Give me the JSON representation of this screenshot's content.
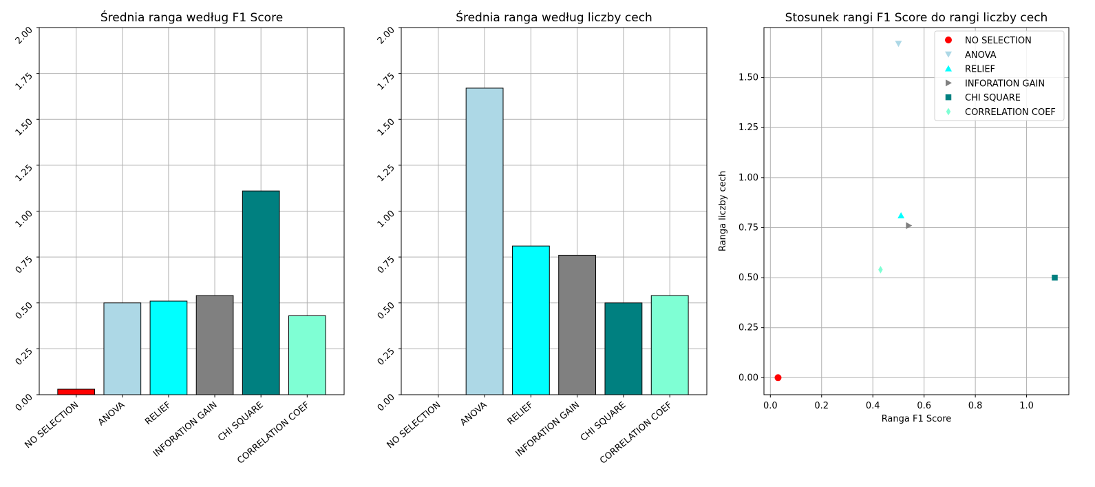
{
  "colors": {
    "NO SELECTION": "#ff0000",
    "ANOVA": "#add8e6",
    "RELIEF": "#00ffff",
    "INFORATION GAIN": "#808080",
    "CHI SQUARE": "#008080",
    "CORRELATION COEF": "#7fffd4"
  },
  "chart_data": [
    {
      "type": "bar",
      "title": "Średnia ranga według F1 Score",
      "categories": [
        "NO SELECTION",
        "ANOVA",
        "RELIEF",
        "INFORATION GAIN",
        "CHI SQUARE",
        "CORRELATION COEF"
      ],
      "values": [
        0.03,
        0.5,
        0.51,
        0.54,
        1.11,
        0.43
      ],
      "ylim": [
        0,
        2.0
      ],
      "yticks": [
        "0.00",
        "0.25",
        "0.50",
        "0.75",
        "1.00",
        "1.25",
        "1.50",
        "1.75",
        "2.00"
      ],
      "grid": true
    },
    {
      "type": "bar",
      "title": "Średnia ranga według liczby cech",
      "categories": [
        "NO SELECTION",
        "ANOVA",
        "RELIEF",
        "INFORATION GAIN",
        "CHI SQUARE",
        "CORRELATION COEF"
      ],
      "values": [
        0.0,
        1.67,
        0.81,
        0.76,
        0.5,
        0.54
      ],
      "ylim": [
        0,
        2.0
      ],
      "yticks": [
        "0.00",
        "0.25",
        "0.50",
        "0.75",
        "1.00",
        "1.25",
        "1.50",
        "1.75",
        "2.00"
      ],
      "grid": true
    },
    {
      "type": "scatter",
      "title": "Stosunek rangi F1 Score do rangi liczby cech",
      "xlabel": "Ranga F1 Score",
      "ylabel": "Ranga liczby cech",
      "xlim": [
        -0.025,
        1.165
      ],
      "ylim": [
        -0.085,
        1.75
      ],
      "xticks": [
        "0.0",
        "0.2",
        "0.4",
        "0.6",
        "0.8",
        "1.0"
      ],
      "yticks": [
        "0.00",
        "0.25",
        "0.50",
        "0.75",
        "1.00",
        "1.25",
        "1.50"
      ],
      "grid": true,
      "legend": "top-right",
      "series": [
        {
          "name": "NO SELECTION",
          "marker": "circle",
          "x": 0.03,
          "y": 0.0
        },
        {
          "name": "ANOVA",
          "marker": "triangle-down",
          "x": 0.5,
          "y": 1.67
        },
        {
          "name": "RELIEF",
          "marker": "triangle-up",
          "x": 0.51,
          "y": 0.81
        },
        {
          "name": "INFORATION GAIN",
          "marker": "triangle-right",
          "x": 0.54,
          "y": 0.76
        },
        {
          "name": "CHI SQUARE",
          "marker": "square",
          "x": 1.11,
          "y": 0.5
        },
        {
          "name": "CORRELATION COEF",
          "marker": "diamond",
          "x": 0.43,
          "y": 0.54
        }
      ]
    }
  ]
}
